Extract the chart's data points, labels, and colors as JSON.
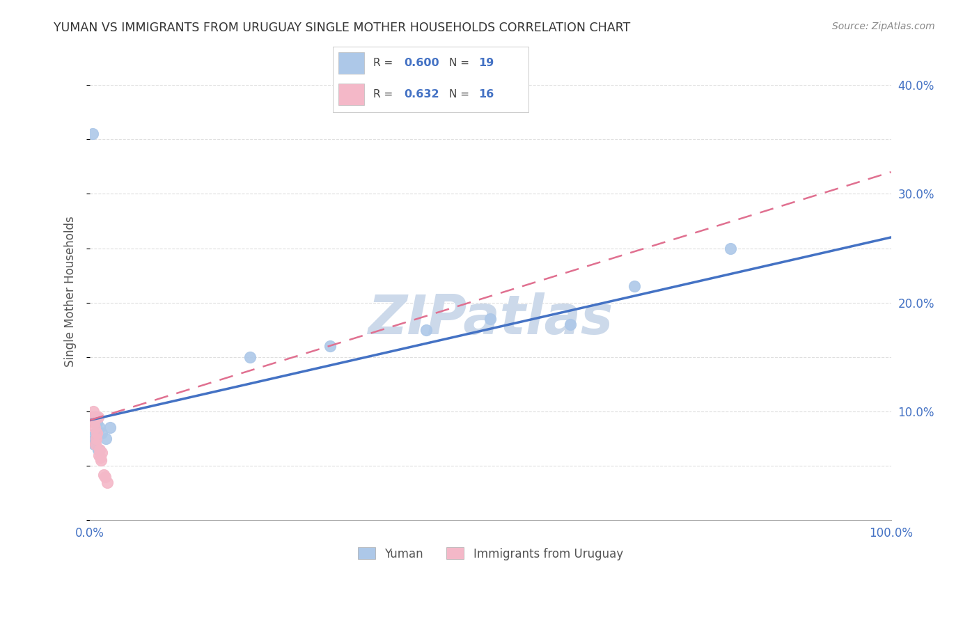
{
  "title": "YUMAN VS IMMIGRANTS FROM URUGUAY SINGLE MOTHER HOUSEHOLDS CORRELATION CHART",
  "source": "Source: ZipAtlas.com",
  "ylabel": "Single Mother Households",
  "series": [
    {
      "name": "Yuman",
      "R": 0.6,
      "N": 19,
      "color": "#adc8e8",
      "line_color": "#4472c4",
      "line_style": "solid",
      "x": [
        0.003,
        0.005,
        0.006,
        0.007,
        0.008,
        0.009,
        0.01,
        0.011,
        0.012,
        0.015,
        0.02,
        0.025,
        0.2,
        0.3,
        0.42,
        0.5,
        0.6,
        0.68,
        0.8
      ],
      "y": [
        0.355,
        0.07,
        0.075,
        0.08,
        0.095,
        0.09,
        0.065,
        0.065,
        0.085,
        0.08,
        0.075,
        0.085,
        0.15,
        0.16,
        0.175,
        0.185,
        0.18,
        0.215,
        0.25
      ]
    },
    {
      "name": "Immigrants from Uruguay",
      "R": 0.632,
      "N": 16,
      "color": "#f4b8c8",
      "line_color": "#e07090",
      "line_style": "dashed",
      "x": [
        0.003,
        0.004,
        0.005,
        0.006,
        0.007,
        0.008,
        0.009,
        0.01,
        0.011,
        0.012,
        0.013,
        0.014,
        0.015,
        0.017,
        0.019,
        0.022
      ],
      "y": [
        0.095,
        0.1,
        0.09,
        0.085,
        0.07,
        0.075,
        0.08,
        0.095,
        0.06,
        0.065,
        0.058,
        0.055,
        0.062,
        0.042,
        0.04,
        0.035
      ]
    }
  ],
  "xlim": [
    0.0,
    1.0
  ],
  "ylim": [
    0.0,
    0.42
  ],
  "xticks": [
    0.0,
    0.2,
    0.4,
    0.6,
    0.8,
    1.0
  ],
  "yticks_right": [
    0.0,
    0.1,
    0.2,
    0.3,
    0.4
  ],
  "ytick_labels_right": [
    "",
    "10.0%",
    "20.0%",
    "30.0%",
    "40.0%"
  ],
  "xtick_labels": [
    "0.0%",
    "",
    "",
    "",
    "",
    "100.0%"
  ],
  "background_color": "#ffffff",
  "grid_color": "#d8d8d8",
  "title_color": "#333333",
  "axis_label_color": "#4472c4",
  "watermark": "ZIPatlas",
  "watermark_color": "#ccd9ea"
}
